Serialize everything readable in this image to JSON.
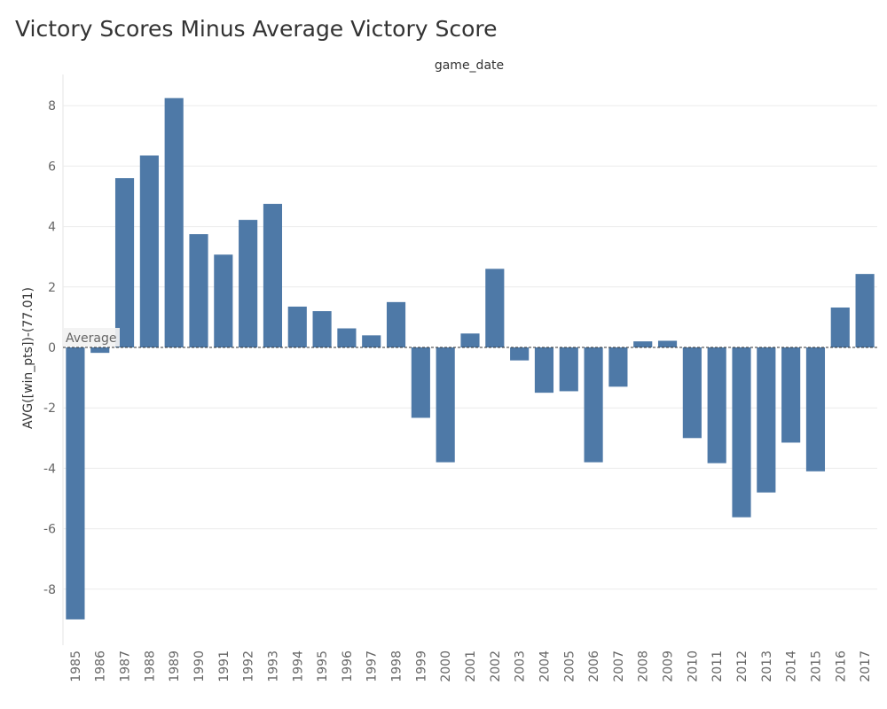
{
  "chart_data": {
    "type": "bar",
    "title": "Victory Scores Minus Average Victory Score",
    "column_header": "game_date",
    "ylabel": "AVG([win_pts])-(77.01)",
    "xlabel": "",
    "ylim": [
      -9.8,
      9.0
    ],
    "yticks": [
      -8,
      -6,
      -4,
      -2,
      0,
      2,
      4,
      6,
      8
    ],
    "reference_line": {
      "label": "Average",
      "value": 0
    },
    "grid": true,
    "legend": "none",
    "colors": {
      "bar": "#4e79a7",
      "grid": "#ececec",
      "reference": "#333333"
    },
    "categories": [
      "1985",
      "1986",
      "1987",
      "1988",
      "1989",
      "1990",
      "1991",
      "1992",
      "1993",
      "1994",
      "1995",
      "1996",
      "1997",
      "1998",
      "1999",
      "2000",
      "2001",
      "2002",
      "2003",
      "2004",
      "2005",
      "2006",
      "2007",
      "2008",
      "2009",
      "2010",
      "2011",
      "2012",
      "2013",
      "2014",
      "2015",
      "2016",
      "2017"
    ],
    "values": [
      -9.0,
      -0.18,
      5.6,
      6.35,
      8.25,
      3.75,
      3.07,
      4.22,
      4.75,
      1.35,
      1.2,
      0.63,
      0.4,
      1.5,
      -2.33,
      -3.8,
      0.46,
      2.6,
      -0.43,
      -1.5,
      -1.45,
      -3.8,
      -1.3,
      0.2,
      0.22,
      -3.0,
      -3.83,
      -5.62,
      -4.8,
      -3.15,
      -4.1,
      1.32,
      2.43
    ]
  }
}
